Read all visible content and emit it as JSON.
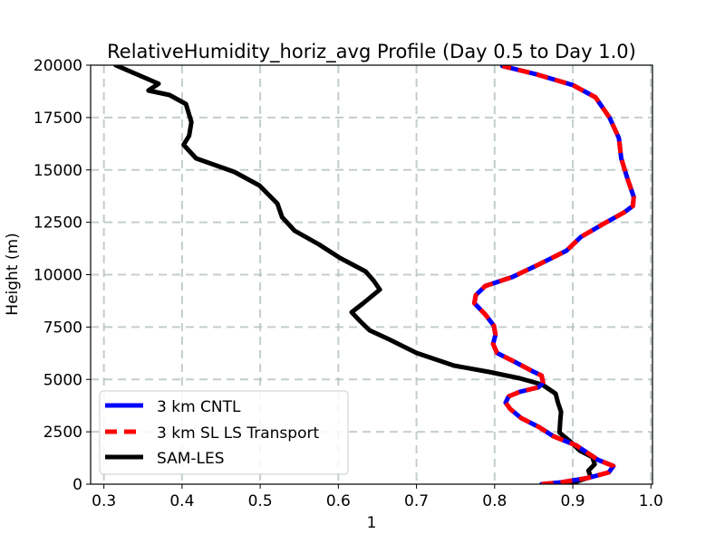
{
  "chart_data": {
    "type": "line",
    "title": "RelativeHumidity_horiz_avg Profile (Day 0.5 to Day 1.0)",
    "xlabel": "1",
    "ylabel": "Height (m)",
    "xlim": [
      0.283,
      1.002
    ],
    "ylim": [
      0,
      20000
    ],
    "xticks": [
      0.3,
      0.4,
      0.5,
      0.6,
      0.7,
      0.8,
      0.9,
      1.0
    ],
    "xtick_labels": [
      "0.3",
      "0.4",
      "0.5",
      "0.6",
      "0.7",
      "0.8",
      "0.9",
      "1.0"
    ],
    "yticks": [
      0,
      2500,
      5000,
      7500,
      10000,
      12500,
      15000,
      17500,
      20000
    ],
    "ytick_labels": [
      "0",
      "2500",
      "5000",
      "7500",
      "10000",
      "12500",
      "15000",
      "17500",
      "20000"
    ],
    "grid": true,
    "legend_position": "lower left",
    "series": [
      {
        "name": "3 km CNTL",
        "color": "#0000ff",
        "linestyle": "solid",
        "points": [
          [
            0.86,
            0
          ],
          [
            0.885,
            86
          ],
          [
            0.92,
            302
          ],
          [
            0.946,
            562
          ],
          [
            0.952,
            864
          ],
          [
            0.932,
            1166
          ],
          [
            0.904,
            1857
          ],
          [
            0.875,
            2289
          ],
          [
            0.857,
            2721
          ],
          [
            0.834,
            3153
          ],
          [
            0.82,
            3586
          ],
          [
            0.814,
            3888
          ],
          [
            0.818,
            4190
          ],
          [
            0.832,
            4406
          ],
          [
            0.856,
            4622
          ],
          [
            0.862,
            4838
          ],
          [
            0.86,
            5184
          ],
          [
            0.848,
            5400
          ],
          [
            0.826,
            5832
          ],
          [
            0.803,
            6264
          ],
          [
            0.798,
            6696
          ],
          [
            0.801,
            7127
          ],
          [
            0.799,
            7559
          ],
          [
            0.788,
            8099
          ],
          [
            0.774,
            8639
          ],
          [
            0.776,
            9028
          ],
          [
            0.788,
            9460
          ],
          [
            0.823,
            9892
          ],
          [
            0.857,
            10497
          ],
          [
            0.892,
            11145
          ],
          [
            0.91,
            11793
          ],
          [
            0.94,
            12441
          ],
          [
            0.966,
            12981
          ],
          [
            0.977,
            13283
          ],
          [
            0.978,
            13715
          ],
          [
            0.97,
            14579
          ],
          [
            0.962,
            15551
          ],
          [
            0.959,
            16523
          ],
          [
            0.947,
            17495
          ],
          [
            0.929,
            18467
          ],
          [
            0.9,
            19050
          ],
          [
            0.853,
            19568
          ],
          [
            0.81,
            19957
          ]
        ]
      },
      {
        "name": "3 km SL LS Transport",
        "color": "#ff0000",
        "linestyle": "dashed",
        "points": [
          [
            0.86,
            0
          ],
          [
            0.885,
            86
          ],
          [
            0.92,
            302
          ],
          [
            0.946,
            562
          ],
          [
            0.952,
            864
          ],
          [
            0.932,
            1166
          ],
          [
            0.904,
            1857
          ],
          [
            0.875,
            2289
          ],
          [
            0.857,
            2721
          ],
          [
            0.834,
            3153
          ],
          [
            0.82,
            3586
          ],
          [
            0.814,
            3888
          ],
          [
            0.818,
            4190
          ],
          [
            0.832,
            4406
          ],
          [
            0.856,
            4622
          ],
          [
            0.862,
            4838
          ],
          [
            0.86,
            5184
          ],
          [
            0.848,
            5400
          ],
          [
            0.826,
            5832
          ],
          [
            0.803,
            6264
          ],
          [
            0.798,
            6696
          ],
          [
            0.801,
            7127
          ],
          [
            0.799,
            7559
          ],
          [
            0.788,
            8099
          ],
          [
            0.774,
            8639
          ],
          [
            0.776,
            9028
          ],
          [
            0.788,
            9460
          ],
          [
            0.823,
            9892
          ],
          [
            0.857,
            10497
          ],
          [
            0.892,
            11145
          ],
          [
            0.91,
            11793
          ],
          [
            0.94,
            12441
          ],
          [
            0.966,
            12981
          ],
          [
            0.977,
            13283
          ],
          [
            0.978,
            13715
          ],
          [
            0.97,
            14579
          ],
          [
            0.962,
            15551
          ],
          [
            0.959,
            16523
          ],
          [
            0.947,
            17495
          ],
          [
            0.929,
            18467
          ],
          [
            0.9,
            19050
          ],
          [
            0.853,
            19568
          ],
          [
            0.81,
            19957
          ]
        ]
      },
      {
        "name": "SAM-LES",
        "color": "#000000",
        "linestyle": "solid",
        "points": [
          [
            0.878,
            0
          ],
          [
            0.905,
            130
          ],
          [
            0.923,
            346
          ],
          [
            0.92,
            648
          ],
          [
            0.928,
            950
          ],
          [
            0.925,
            1296
          ],
          [
            0.909,
            1598
          ],
          [
            0.897,
            2030
          ],
          [
            0.883,
            2462
          ],
          [
            0.884,
            3024
          ],
          [
            0.885,
            3456
          ],
          [
            0.881,
            3888
          ],
          [
            0.878,
            4320
          ],
          [
            0.861,
            4752
          ],
          [
            0.832,
            5054
          ],
          [
            0.793,
            5356
          ],
          [
            0.748,
            5659
          ],
          [
            0.7,
            6264
          ],
          [
            0.665,
            6912
          ],
          [
            0.64,
            7343
          ],
          [
            0.628,
            7775
          ],
          [
            0.617,
            8207
          ],
          [
            0.632,
            8639
          ],
          [
            0.653,
            9287
          ],
          [
            0.645,
            9719
          ],
          [
            0.635,
            10151
          ],
          [
            0.602,
            10799
          ],
          [
            0.575,
            11447
          ],
          [
            0.544,
            12095
          ],
          [
            0.528,
            12743
          ],
          [
            0.522,
            13391
          ],
          [
            0.499,
            14255
          ],
          [
            0.467,
            14903
          ],
          [
            0.418,
            15551
          ],
          [
            0.402,
            16199
          ],
          [
            0.409,
            16631
          ],
          [
            0.412,
            17279
          ],
          [
            0.405,
            18143
          ],
          [
            0.384,
            18575
          ],
          [
            0.357,
            18790
          ],
          [
            0.37,
            19114
          ],
          [
            0.315,
            20000
          ]
        ]
      }
    ]
  },
  "legend": {
    "items": [
      {
        "label": "3 km CNTL"
      },
      {
        "label": "3 km SL LS Transport"
      },
      {
        "label": "SAM-LES"
      }
    ]
  }
}
